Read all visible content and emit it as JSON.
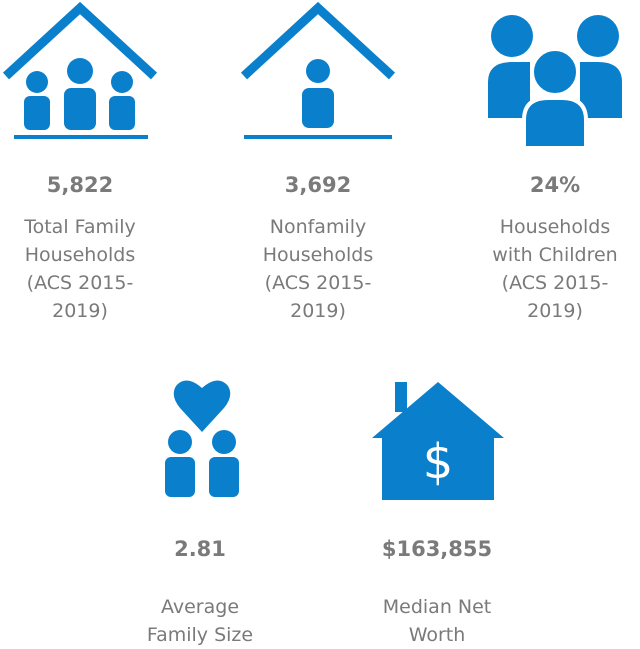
{
  "stats": [
    {
      "value": "5,822",
      "label_lines": [
        "Total Family",
        "Households",
        "(ACS 2015-",
        "2019)"
      ]
    },
    {
      "value": "3,692",
      "label_lines": [
        "Nonfamily",
        "Households",
        "(ACS 2015-",
        "2019)"
      ]
    },
    {
      "value": "24%",
      "label_lines": [
        "Households",
        "with Children",
        "(ACS 2015-",
        "2019)"
      ]
    },
    {
      "value": "2.81",
      "label_lines": [
        "Average",
        "Family Size"
      ]
    },
    {
      "value": "$163,855",
      "label_lines": [
        "Median Net",
        "Worth"
      ]
    }
  ],
  "icon_symbol": "$"
}
